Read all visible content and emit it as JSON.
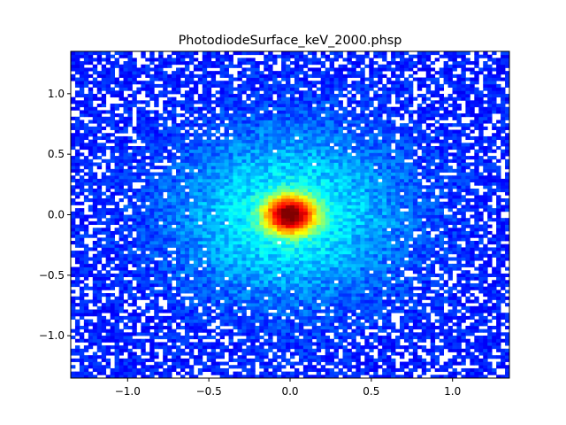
{
  "chart_data": {
    "type": "heatmap",
    "title": "PhotodiodeSurface_keV_2000.phsp",
    "xlabel": "",
    "ylabel": "",
    "xlim": [
      -1.35,
      1.35
    ],
    "ylim": [
      -1.35,
      1.35
    ],
    "bins": [
      100,
      100
    ],
    "grid": false,
    "colormap": "jet",
    "empty_bins": "white",
    "distribution": {
      "peak_center": [
        0.0,
        0.0
      ],
      "core_sigma": 0.09,
      "halo_sigma": 0.45,
      "background_fraction": 0.32,
      "description_levels": [
        "dark blue",
        "blue",
        "cyan",
        "green",
        "yellow",
        "orange",
        "red"
      ]
    },
    "xticks": [
      {
        "value": -1.0,
        "label": "−1.0"
      },
      {
        "value": -0.5,
        "label": "−0.5"
      },
      {
        "value": 0.0,
        "label": "0.0"
      },
      {
        "value": 0.5,
        "label": "0.5"
      },
      {
        "value": 1.0,
        "label": "1.0"
      }
    ],
    "yticks": [
      {
        "value": 1.0,
        "label": "1.0"
      },
      {
        "value": 0.5,
        "label": "0.5"
      },
      {
        "value": 0.0,
        "label": "0.0"
      },
      {
        "value": -0.5,
        "label": "−0.5"
      },
      {
        "value": -1.0,
        "label": "−1.0"
      }
    ]
  }
}
